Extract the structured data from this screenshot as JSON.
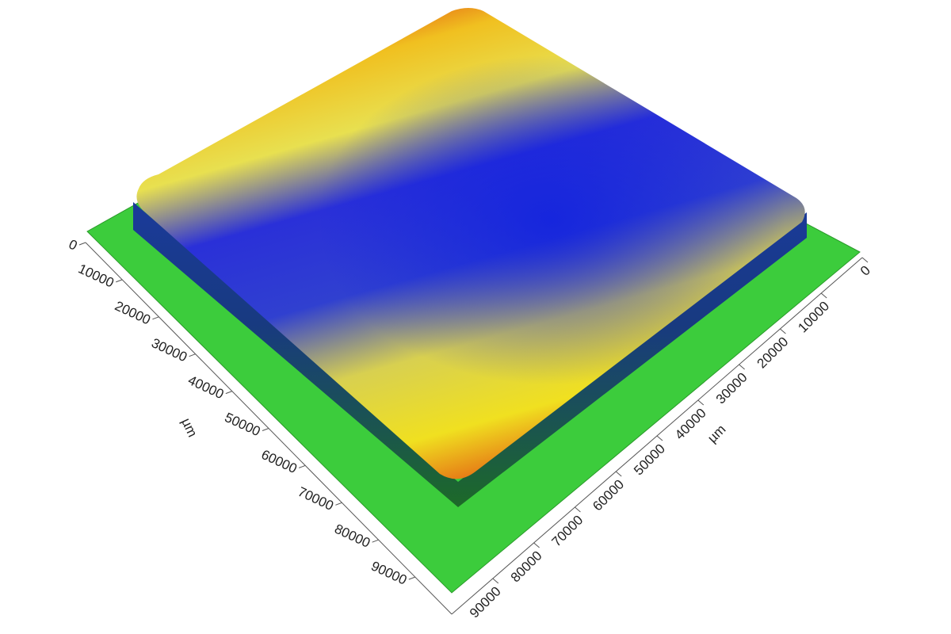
{
  "chart_data": {
    "type": "surface",
    "xlabel": "µm",
    "ylabel": "µm",
    "xlim": [
      0,
      100000
    ],
    "xticks": [
      0,
      10000,
      20000,
      30000,
      40000,
      50000,
      60000,
      70000,
      80000,
      90000
    ],
    "ylim": [
      0,
      100000
    ],
    "yticks": [
      0,
      10000,
      20000,
      30000,
      40000,
      50000,
      60000,
      70000,
      80000,
      90000
    ]
  }
}
